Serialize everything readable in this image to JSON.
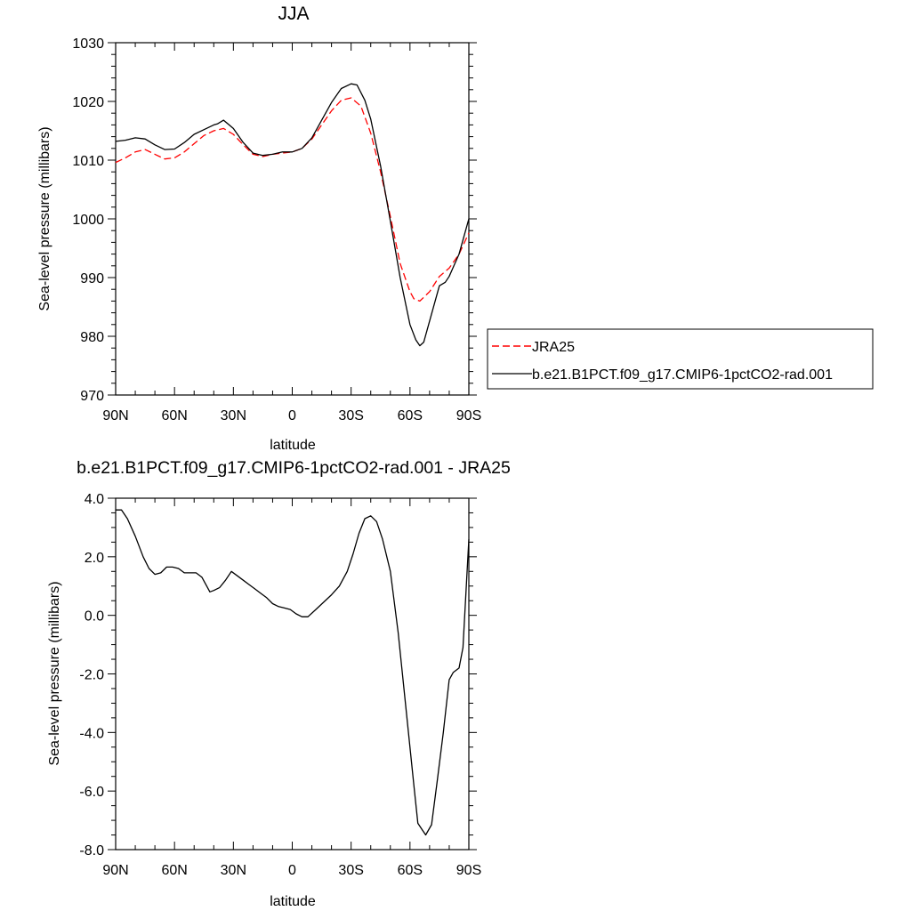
{
  "chart_data": [
    {
      "type": "line",
      "title": "JJA",
      "xlabel": "latitude",
      "ylabel": "Sea-level pressure (millibars)",
      "xlim": [
        -90,
        90
      ],
      "ylim": [
        970,
        1030
      ],
      "x_direction": "90N on left, 90S on right",
      "yticks": [
        970,
        980,
        990,
        1000,
        1010,
        1020,
        1030
      ],
      "ytick_labels": [
        "970",
        "980",
        "990",
        "1000",
        "1010",
        "1020",
        "1030"
      ],
      "xticks": [
        90,
        60,
        30,
        0,
        -30,
        -60,
        -90
      ],
      "xtick_labels": [
        "90N",
        "60N",
        "30N",
        "0",
        "30S",
        "60S",
        "90S"
      ],
      "legend_placement": "right",
      "series": [
        {
          "name": "JRA25",
          "color": "#ff0000",
          "dash": "dashed",
          "x": [
            90,
            85,
            80,
            75,
            70,
            65,
            60,
            55,
            50,
            45,
            40,
            35,
            30,
            25,
            20,
            15,
            10,
            5,
            0,
            -5,
            -10,
            -15,
            -20,
            -25,
            -30,
            -35,
            -40,
            -45,
            -50,
            -55,
            -60,
            -62,
            -65,
            -70,
            -75,
            -80,
            -85,
            -90
          ],
          "y": [
            1009.6,
            1010.4,
            1011.4,
            1011.8,
            1011.0,
            1010.2,
            1010.4,
            1011.4,
            1012.8,
            1014.2,
            1015.0,
            1015.4,
            1014.4,
            1012.6,
            1011.0,
            1010.6,
            1011.0,
            1011.2,
            1011.4,
            1012.0,
            1013.6,
            1016.0,
            1018.4,
            1020.2,
            1020.6,
            1019.2,
            1014.6,
            1008.0,
            1000.4,
            992.4,
            987.6,
            986.4,
            986.0,
            987.6,
            990.2,
            991.6,
            994.0,
            997.6
          ]
        },
        {
          "name": "b.e21.B1PCT.f09_g17.CMIP6-1pctCO2-rad.001",
          "color": "#000000",
          "dash": "solid",
          "x": [
            90,
            85,
            80,
            75,
            70,
            65,
            60,
            55,
            50,
            45,
            40,
            38,
            35,
            30,
            25,
            20,
            15,
            10,
            5,
            0,
            -5,
            -10,
            -15,
            -20,
            -25,
            -30,
            -33,
            -37,
            -40,
            -45,
            -50,
            -55,
            -60,
            -63,
            -65,
            -67,
            -70,
            -75,
            -78,
            -80,
            -85,
            -90
          ],
          "y": [
            1013.2,
            1013.4,
            1013.8,
            1013.6,
            1012.6,
            1011.8,
            1011.9,
            1013.0,
            1014.4,
            1015.2,
            1016.0,
            1016.2,
            1016.8,
            1015.4,
            1013.0,
            1011.2,
            1010.8,
            1011.0,
            1011.4,
            1011.4,
            1012.0,
            1013.8,
            1016.8,
            1019.8,
            1022.2,
            1023.0,
            1022.8,
            1020.2,
            1017.0,
            1009.0,
            999.6,
            990.0,
            982.0,
            979.4,
            978.4,
            979.0,
            982.6,
            988.6,
            989.2,
            990.2,
            994.0,
            1000.0
          ]
        }
      ]
    },
    {
      "type": "line",
      "title": "b.e21.B1PCT.f09_g17.CMIP6-1pctCO2-rad.001 - JRA25",
      "xlabel": "latitude",
      "ylabel": "Sea-level pressure (millibars)",
      "xlim": [
        -90,
        90
      ],
      "ylim": [
        -8,
        4
      ],
      "yticks": [
        -8,
        -6,
        -4,
        -2,
        0,
        2,
        4
      ],
      "ytick_labels": [
        "-8.0",
        "-6.0",
        "-4.0",
        "-2.0",
        "0.0",
        "2.0",
        "4.0"
      ],
      "xticks": [
        90,
        60,
        30,
        0,
        -30,
        -60,
        -90
      ],
      "xtick_labels": [
        "90N",
        "60N",
        "30N",
        "0",
        "30S",
        "60S",
        "90S"
      ],
      "series": [
        {
          "color": "#000000",
          "dash": "solid",
          "x": [
            90,
            87,
            84,
            80,
            76,
            73,
            70,
            67,
            64,
            61,
            58,
            55,
            52,
            49,
            46,
            42,
            40,
            37,
            34,
            31,
            28,
            25,
            22,
            19,
            16,
            13,
            10,
            7,
            4,
            1,
            -2,
            -5,
            -8,
            -12,
            -16,
            -20,
            -24,
            -28,
            -31,
            -34,
            -37,
            -40,
            -43,
            -46,
            -50,
            -54,
            -58,
            -62,
            -64,
            -66,
            -68,
            -71,
            -74,
            -77,
            -80,
            -82,
            -85,
            -87,
            -90
          ],
          "y": [
            3.6,
            3.6,
            3.3,
            2.7,
            2.0,
            1.6,
            1.4,
            1.45,
            1.65,
            1.65,
            1.6,
            1.45,
            1.45,
            1.45,
            1.3,
            0.8,
            0.85,
            0.95,
            1.2,
            1.5,
            1.35,
            1.2,
            1.05,
            0.9,
            0.75,
            0.6,
            0.4,
            0.3,
            0.25,
            0.2,
            0.05,
            -0.05,
            -0.05,
            0.2,
            0.45,
            0.7,
            1.0,
            1.5,
            2.1,
            2.8,
            3.3,
            3.4,
            3.2,
            2.6,
            1.5,
            -0.6,
            -3.2,
            -5.8,
            -7.1,
            -7.3,
            -7.5,
            -7.15,
            -5.6,
            -4.0,
            -2.2,
            -1.95,
            -1.8,
            -1.1,
            2.6
          ]
        }
      ]
    }
  ]
}
